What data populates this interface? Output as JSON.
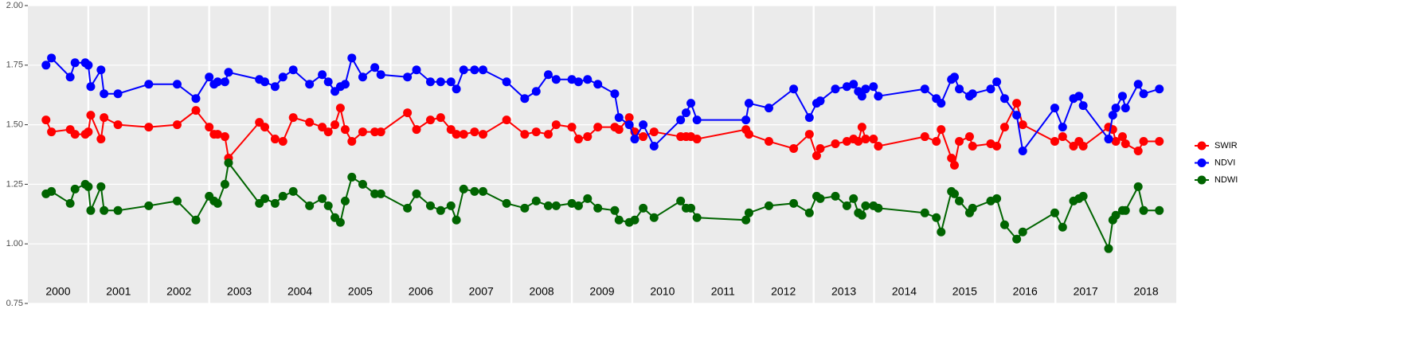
{
  "chart_data": {
    "type": "line",
    "x": [
      2000.3,
      2000.39,
      2000.7,
      2000.78,
      2000.95,
      2001.0,
      2001.04,
      2001.21,
      2001.26,
      2001.49,
      2002.0,
      2002.47,
      2002.78,
      2003.0,
      2003.08,
      2003.14,
      2003.26,
      2003.32,
      2003.83,
      2003.92,
      2004.09,
      2004.22,
      2004.39,
      2004.66,
      2004.87,
      2004.97,
      2005.08,
      2005.17,
      2005.25,
      2005.36,
      2005.54,
      2005.74,
      2005.84,
      2006.28,
      2006.43,
      2006.66,
      2006.83,
      2007.0,
      2007.09,
      2007.21,
      2007.39,
      2007.53,
      2007.92,
      2008.22,
      2008.41,
      2008.61,
      2008.74,
      2009.0,
      2009.11,
      2009.26,
      2009.43,
      2009.71,
      2009.78,
      2009.95,
      2010.04,
      2010.18,
      2010.36,
      2010.8,
      2010.89,
      2010.97,
      2011.07,
      2011.88,
      2011.93,
      2012.26,
      2012.67,
      2012.93,
      2013.05,
      2013.11,
      2013.36,
      2013.55,
      2013.66,
      2013.74,
      2013.8,
      2013.86,
      2013.99,
      2014.07,
      2014.84,
      2015.03,
      2015.11,
      2015.28,
      2015.33,
      2015.41,
      2015.58,
      2015.63,
      2015.93,
      2016.03,
      2016.16,
      2016.36,
      2016.46,
      2016.99,
      2017.12,
      2017.3,
      2017.39,
      2017.46,
      2017.88,
      2017.95,
      2018.0,
      2018.11,
      2018.16,
      2018.37,
      2018.46,
      2018.72
    ],
    "series": [
      {
        "name": "SWIR",
        "color": "#ff0000",
        "values": [
          1.52,
          1.47,
          1.48,
          1.46,
          1.46,
          1.47,
          1.54,
          1.44,
          1.53,
          1.5,
          1.49,
          1.5,
          1.56,
          1.49,
          1.46,
          1.46,
          1.45,
          1.36,
          1.51,
          1.49,
          1.44,
          1.43,
          1.53,
          1.51,
          1.49,
          1.47,
          1.5,
          1.57,
          1.48,
          1.43,
          1.47,
          1.47,
          1.47,
          1.55,
          1.48,
          1.52,
          1.53,
          1.48,
          1.46,
          1.46,
          1.47,
          1.46,
          1.52,
          1.46,
          1.47,
          1.46,
          1.5,
          1.49,
          1.44,
          1.45,
          1.49,
          1.49,
          1.48,
          1.53,
          1.47,
          1.45,
          1.47,
          1.45,
          1.45,
          1.45,
          1.44,
          1.48,
          1.46,
          1.43,
          1.4,
          1.46,
          1.37,
          1.4,
          1.42,
          1.43,
          1.44,
          1.43,
          1.49,
          1.44,
          1.44,
          1.41,
          1.45,
          1.43,
          1.48,
          1.36,
          1.33,
          1.43,
          1.45,
          1.41,
          1.42,
          1.41,
          1.49,
          1.59,
          1.5,
          1.43,
          1.45,
          1.41,
          1.43,
          1.41,
          1.49,
          1.48,
          1.43,
          1.45,
          1.42,
          1.39,
          1.43,
          1.43
        ]
      },
      {
        "name": "NDVI",
        "color": "#0000ff",
        "values": [
          1.75,
          1.78,
          1.7,
          1.76,
          1.76,
          1.75,
          1.66,
          1.73,
          1.63,
          1.63,
          1.67,
          1.67,
          1.61,
          1.7,
          1.67,
          1.68,
          1.68,
          1.72,
          1.69,
          1.68,
          1.66,
          1.7,
          1.73,
          1.67,
          1.71,
          1.68,
          1.64,
          1.66,
          1.67,
          1.78,
          1.7,
          1.74,
          1.71,
          1.7,
          1.73,
          1.68,
          1.68,
          1.68,
          1.65,
          1.73,
          1.73,
          1.73,
          1.68,
          1.61,
          1.64,
          1.71,
          1.69,
          1.69,
          1.68,
          1.69,
          1.67,
          1.63,
          1.53,
          1.5,
          1.44,
          1.5,
          1.41,
          1.52,
          1.55,
          1.59,
          1.52,
          1.52,
          1.59,
          1.57,
          1.65,
          1.53,
          1.59,
          1.6,
          1.65,
          1.66,
          1.67,
          1.64,
          1.62,
          1.65,
          1.66,
          1.62,
          1.65,
          1.61,
          1.59,
          1.69,
          1.7,
          1.65,
          1.62,
          1.63,
          1.65,
          1.68,
          1.61,
          1.54,
          1.39,
          1.57,
          1.49,
          1.61,
          1.62,
          1.58,
          1.44,
          1.54,
          1.57,
          1.62,
          1.57,
          1.67,
          1.63,
          1.65
        ]
      },
      {
        "name": "NDWI",
        "color": "#006400",
        "values": [
          1.21,
          1.22,
          1.17,
          1.23,
          1.25,
          1.24,
          1.14,
          1.24,
          1.14,
          1.14,
          1.16,
          1.18,
          1.1,
          1.2,
          1.18,
          1.17,
          1.25,
          1.34,
          1.17,
          1.19,
          1.17,
          1.2,
          1.22,
          1.16,
          1.19,
          1.16,
          1.11,
          1.09,
          1.18,
          1.28,
          1.25,
          1.21,
          1.21,
          1.15,
          1.21,
          1.16,
          1.14,
          1.16,
          1.1,
          1.23,
          1.22,
          1.22,
          1.17,
          1.15,
          1.18,
          1.16,
          1.16,
          1.17,
          1.16,
          1.19,
          1.15,
          1.14,
          1.1,
          1.09,
          1.1,
          1.15,
          1.11,
          1.18,
          1.15,
          1.15,
          1.11,
          1.1,
          1.13,
          1.16,
          1.17,
          1.13,
          1.2,
          1.19,
          1.2,
          1.16,
          1.19,
          1.13,
          1.12,
          1.16,
          1.16,
          1.15,
          1.13,
          1.11,
          1.05,
          1.22,
          1.21,
          1.18,
          1.13,
          1.15,
          1.18,
          1.19,
          1.08,
          1.02,
          1.05,
          1.13,
          1.07,
          1.18,
          1.19,
          1.2,
          0.98,
          1.1,
          1.12,
          1.14,
          1.14,
          1.24,
          1.14,
          1.14
        ]
      }
    ],
    "xlim": [
      2000,
      2019
    ],
    "xticks": [
      {
        "value": 2000.5,
        "label": "2000"
      },
      {
        "value": 2001.5,
        "label": "2001"
      },
      {
        "value": 2002.5,
        "label": "2002"
      },
      {
        "value": 2003.5,
        "label": "2003"
      },
      {
        "value": 2004.5,
        "label": "2004"
      },
      {
        "value": 2005.5,
        "label": "2005"
      },
      {
        "value": 2006.5,
        "label": "2006"
      },
      {
        "value": 2007.5,
        "label": "2007"
      },
      {
        "value": 2008.5,
        "label": "2008"
      },
      {
        "value": 2009.5,
        "label": "2009"
      },
      {
        "value": 2010.5,
        "label": "2010"
      },
      {
        "value": 2011.5,
        "label": "2011"
      },
      {
        "value": 2012.5,
        "label": "2012"
      },
      {
        "value": 2013.5,
        "label": "2013"
      },
      {
        "value": 2014.5,
        "label": "2014"
      },
      {
        "value": 2015.5,
        "label": "2015"
      },
      {
        "value": 2016.5,
        "label": "2016"
      },
      {
        "value": 2017.5,
        "label": "2017"
      },
      {
        "value": 2018.5,
        "label": "2018"
      }
    ],
    "xgrid": [
      2001,
      2002,
      2003,
      2004,
      2005,
      2006,
      2007,
      2008,
      2009,
      2010,
      2011,
      2012,
      2013,
      2014,
      2015,
      2016,
      2017,
      2018
    ],
    "ylim": [
      0.75,
      2.0
    ],
    "yticks": [
      {
        "value": 0.75,
        "label": "0.75"
      },
      {
        "value": 1.0,
        "label": "1.00"
      },
      {
        "value": 1.25,
        "label": "1.25"
      },
      {
        "value": 1.5,
        "label": "1.50"
      },
      {
        "value": 1.75,
        "label": "1.75"
      },
      {
        "value": 2.0,
        "label": "2.00"
      }
    ],
    "grid": true,
    "legend": "right"
  }
}
